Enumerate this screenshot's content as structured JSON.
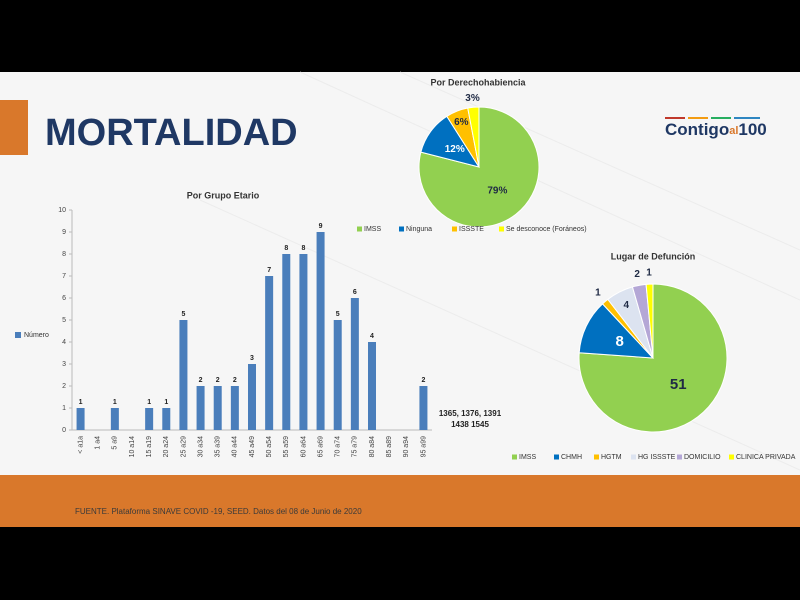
{
  "slide": {
    "title": "MORTALIDAD",
    "logo": [
      "Contigo",
      "al",
      "100"
    ],
    "source": "FUENTE. Plataforma SINAVE COVID -19, SEED. Datos del 08 de Junio de 2020"
  },
  "chart_data": [
    {
      "type": "bar",
      "title": "Por Grupo Etario",
      "categories": [
        "< a1a",
        "1 a4",
        "5 a9",
        "10 a14",
        "15 a19",
        "20 a24",
        "25 a29",
        "30 a34",
        "35 a39",
        "40 a44",
        "45 a49",
        "50 a54",
        "55 a59",
        "60 a64",
        "65 a69",
        "70 a74",
        "75 a79",
        "80 a84",
        "85 a89",
        "90 a94",
        "95 a99"
      ],
      "series": [
        {
          "name": "Número",
          "color": "#4a7ebb",
          "values": [
            1,
            null,
            1,
            null,
            1,
            1,
            5,
            2,
            2,
            2,
            3,
            7,
            8,
            8,
            9,
            5,
            6,
            4,
            null,
            null,
            2
          ]
        }
      ],
      "ylim": [
        0,
        10
      ],
      "yticks": [
        0,
        1,
        2,
        3,
        4,
        5,
        6,
        7,
        8,
        9,
        10
      ],
      "grid": false,
      "legend": "left",
      "annotations": [
        "1365, 1376, 1391",
        "1438 1545"
      ]
    },
    {
      "type": "pie",
      "title": "Por Derechohabiencia",
      "categories": [
        "IMSS",
        "Ninguna",
        "ISSSTE",
        "Se desconoce (Foráneos)"
      ],
      "values": [
        79,
        12,
        6,
        3
      ],
      "value_labels": [
        "79%",
        "12%",
        "6%",
        "3%"
      ],
      "colors": [
        "#92d050",
        "#0070c0",
        "#ffc000",
        "#ffff00"
      ],
      "legend": "bottom"
    },
    {
      "type": "pie",
      "title": "Lugar de Defunción",
      "categories": [
        "IMSS",
        "CHMH",
        "HGTM",
        "HG ISSSTE",
        "DOMICILIO",
        "CLINICA PRIVADA"
      ],
      "values": [
        51,
        8,
        1,
        4,
        2,
        1
      ],
      "colors": [
        "#92d050",
        "#0070c0",
        "#ffc000",
        "#dce3f0",
        "#b4a7d6",
        "#ffff00"
      ],
      "legend": "bottom"
    }
  ]
}
